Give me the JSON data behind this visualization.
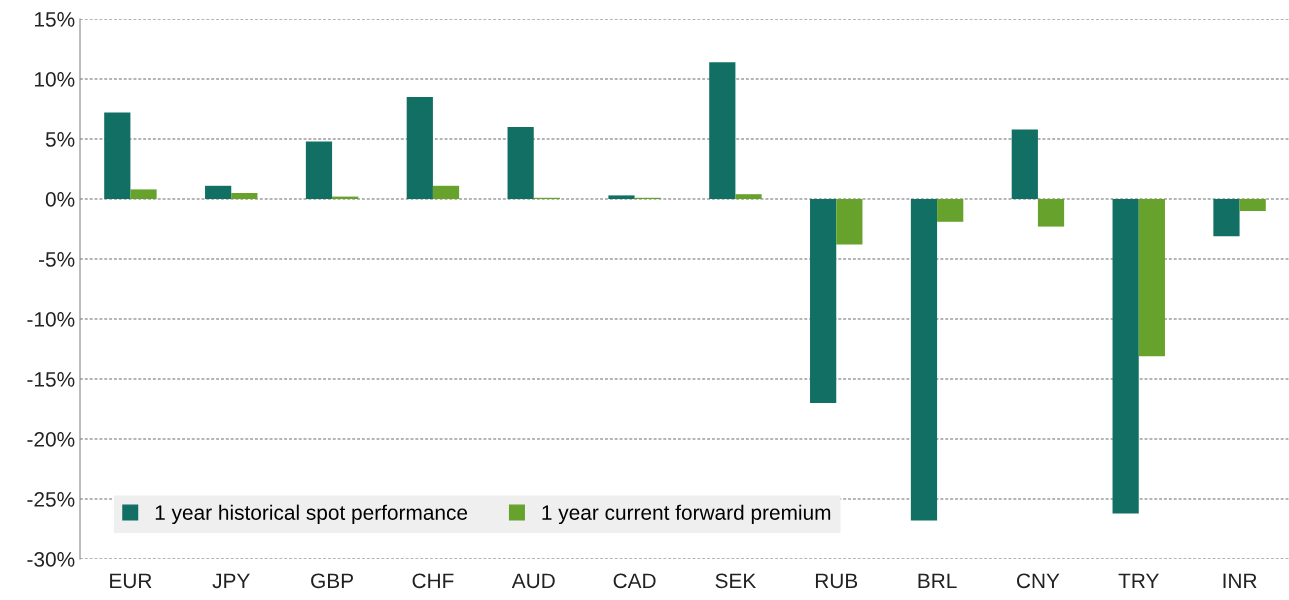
{
  "chart_data": {
    "type": "bar",
    "categories": [
      "EUR",
      "JPY",
      "GBP",
      "CHF",
      "AUD",
      "CAD",
      "SEK",
      "RUB",
      "BRL",
      "CNY",
      "TRY",
      "INR"
    ],
    "series": [
      {
        "name": "1 year historical spot performance",
        "color": "#126f63",
        "values": [
          7.2,
          1.1,
          4.8,
          8.5,
          6.0,
          0.3,
          11.4,
          -17.0,
          -26.8,
          5.8,
          -26.2,
          -3.1
        ]
      },
      {
        "name": "1 year current forward premium",
        "color": "#67a22c",
        "values": [
          0.8,
          0.5,
          0.2,
          1.1,
          0.1,
          0.1,
          0.4,
          -3.8,
          -1.9,
          -2.3,
          -13.1,
          -1.0
        ]
      }
    ],
    "ylim": [
      -30,
      15
    ],
    "yticks": [
      {
        "value": -30,
        "label": "-30%"
      },
      {
        "value": -25,
        "label": "-25%"
      },
      {
        "value": -20,
        "label": "-20%"
      },
      {
        "value": -15,
        "label": "-15%"
      },
      {
        "value": -10,
        "label": "-10%"
      },
      {
        "value": -5,
        "label": "-5%"
      },
      {
        "value": 0,
        "label": "0%"
      },
      {
        "value": 5,
        "label": "5%"
      },
      {
        "value": 10,
        "label": "10%"
      },
      {
        "value": 15,
        "label": "15%"
      }
    ],
    "grid": "y",
    "legend": "bottom left"
  }
}
